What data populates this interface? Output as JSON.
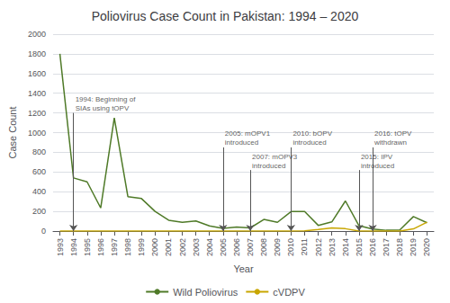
{
  "chart_data": {
    "type": "line",
    "title": "Poliovirus Case Count in Pakistan: 1994 – 2020",
    "xlabel": "Year",
    "ylabel": "Case Count",
    "x": [
      1993,
      1994,
      1995,
      1996,
      1997,
      1998,
      1999,
      2000,
      2001,
      2002,
      2003,
      2004,
      2005,
      2006,
      2007,
      2008,
      2009,
      2010,
      2011,
      2012,
      2013,
      2014,
      2015,
      2016,
      2017,
      2018,
      2019,
      2020
    ],
    "series": [
      {
        "name": "Wild Poliovirus",
        "color": "#4f7a28",
        "values": [
          1800,
          540,
          500,
          235,
          1150,
          350,
          330,
          200,
          110,
          90,
          103,
          53,
          28,
          40,
          32,
          118,
          89,
          198,
          198,
          58,
          93,
          306,
          54,
          20,
          8,
          12,
          147,
          84
        ]
      },
      {
        "name": "cVDPV",
        "color": "#c8a600",
        "values": [
          0,
          0,
          0,
          0,
          0,
          0,
          0,
          0,
          0,
          0,
          0,
          0,
          0,
          0,
          0,
          0,
          0,
          0,
          2,
          16,
          32,
          24,
          0,
          0,
          0,
          0,
          22,
          90
        ]
      }
    ],
    "annotations": [
      {
        "x": 1994,
        "y": 1200,
        "text": "1994: Beginning of\nSIAs using tOPV",
        "color": "#555555"
      },
      {
        "x": 2005,
        "y": 850,
        "text": "2005: mOPV1\nintroduced",
        "color": "#555555"
      },
      {
        "x": 2007,
        "y": 620,
        "text": "2007: mOPV3\nintroduced",
        "color": "#555555"
      },
      {
        "x": 2010,
        "y": 850,
        "text": "2010: bOPV\nintroduced",
        "color": "#555555"
      },
      {
        "x": 2015,
        "y": 620,
        "text": "2015: IPV\nintroduced",
        "color": "#555555"
      },
      {
        "x": 2016,
        "y": 850,
        "text": "2016: tOPV\nwithdrawn",
        "color": "#555555"
      }
    ],
    "xlim": [
      1992.5,
      2020.5
    ],
    "xticks": [
      1993,
      1994,
      1995,
      1996,
      1997,
      1998,
      1999,
      2000,
      2001,
      2002,
      2003,
      2004,
      2005,
      2006,
      2007,
      2008,
      2009,
      2010,
      2011,
      2012,
      2013,
      2014,
      2015,
      2016,
      2017,
      2018,
      2019,
      2020
    ],
    "ylim": [
      0,
      2000
    ],
    "yticks": [
      0,
      200,
      400,
      600,
      800,
      1000,
      1200,
      1400,
      1600,
      1800,
      2000
    ],
    "grid": true,
    "legend": "bottom"
  }
}
